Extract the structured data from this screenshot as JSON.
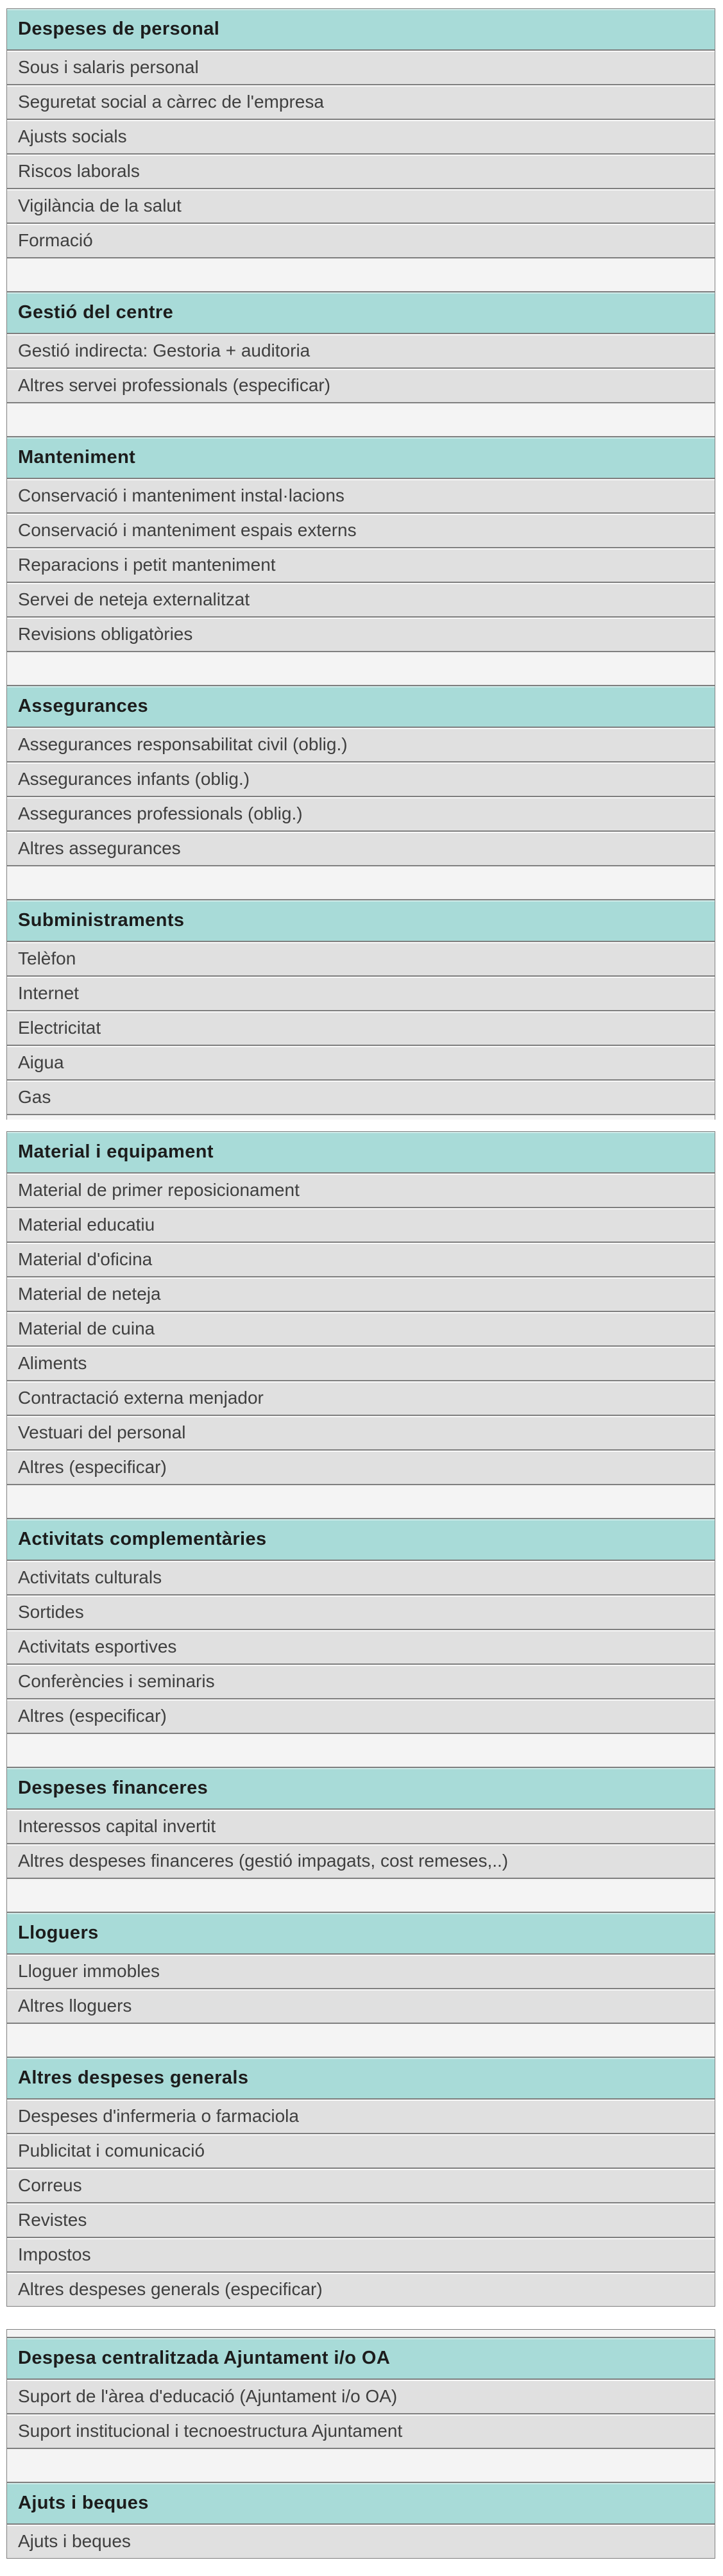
{
  "colors": {
    "header_bg": "#a8dbd8",
    "row_bg": "#e0e0e0",
    "spacer_bg": "#f4f4f4",
    "border": "#7f7f7f",
    "header_text": "#1c1c1c",
    "row_text": "#3f3f3f"
  },
  "blocks": [
    {
      "gap_before": 13,
      "leading_stub": false,
      "trailing_stub": true,
      "sections": [
        {
          "title": "Despeses de personal",
          "items": [
            "Sous i salaris personal",
            "Seguretat social a càrrec de l'empresa",
            "Ajusts socials",
            "Riscos laborals",
            "Vigilància de la salut",
            "Formació"
          ]
        },
        {
          "title": "Gestió del centre",
          "items": [
            "Gestió indirecta: Gestoria + auditoria",
            "Altres servei professionals (especificar)"
          ]
        },
        {
          "title": "Manteniment",
          "items": [
            "Conservació i manteniment instal·lacions",
            "Conservació i manteniment espais externs",
            "Reparacions i petit manteniment",
            "Servei de neteja externalitzat",
            "Revisions obligatòries"
          ]
        },
        {
          "title": "Assegurances",
          "items": [
            "Assegurances responsabilitat civil (oblig.)",
            "Assegurances infants (oblig.)",
            "Assegurances professionals (oblig.)",
            "Altres assegurances"
          ]
        },
        {
          "title": "Subministraments",
          "items": [
            "Telèfon",
            "Internet",
            "Electricitat",
            "Aigua",
            "Gas"
          ]
        }
      ]
    },
    {
      "gap_before": 18,
      "leading_stub": false,
      "trailing_stub": false,
      "sections": [
        {
          "title": "Material i equipament",
          "items": [
            "Material de primer reposicionament",
            "Material educatiu",
            "Material d'oficina",
            "Material de neteja",
            "Material de cuina",
            "Aliments",
            "Contractació externa menjador",
            "Vestuari del personal",
            "Altres (especificar)"
          ]
        },
        {
          "title": "Activitats complementàries",
          "items": [
            "Activitats culturals",
            "Sortides",
            "Activitats esportives",
            "Conferències i seminaris",
            "Altres (especificar)"
          ]
        },
        {
          "title": "Despeses financeres",
          "items": [
            "Interessos capital invertit",
            "Altres despeses financeres (gestió impagats, cost remeses,..)"
          ]
        },
        {
          "title": "Lloguers",
          "items": [
            "Lloguer immobles",
            "Altres lloguers"
          ]
        },
        {
          "title": "Altres despeses generals",
          "items": [
            "Despeses d'infermeria o farmaciola",
            "Publicitat i comunicació",
            "Correus",
            "Revistes",
            "Impostos",
            "Altres despeses generals (especificar)"
          ]
        }
      ]
    },
    {
      "gap_before": 35,
      "leading_stub": true,
      "trailing_stub": false,
      "sections": [
        {
          "title": "Despesa centralitzada Ajuntament i/o OA",
          "items": [
            "Suport de l'àrea d'educació (Ajuntament i/o OA)",
            "Suport institucional i tecnoestructura Ajuntament"
          ]
        },
        {
          "title": "Ajuts i beques",
          "items": [
            "Ajuts i beques"
          ]
        }
      ]
    }
  ]
}
